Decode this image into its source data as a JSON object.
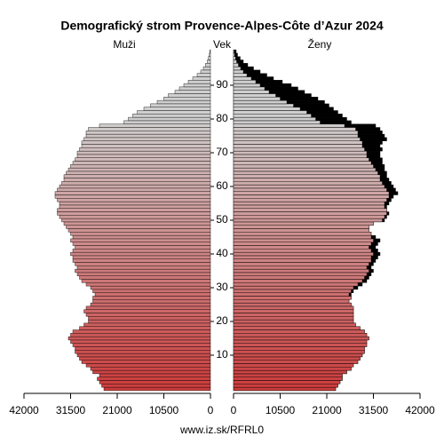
{
  "chart_data": {
    "type": "pyramid",
    "title": "Demografický strom Provence-Alpes-Côte d’Azur 2024",
    "y_label": "Vek",
    "footer": "www.iz.sk/RFRL0",
    "y": [
      0,
      1,
      2,
      3,
      4,
      5,
      6,
      7,
      8,
      9,
      10,
      11,
      12,
      13,
      14,
      15,
      16,
      17,
      18,
      19,
      20,
      21,
      22,
      23,
      24,
      25,
      26,
      27,
      28,
      29,
      30,
      31,
      32,
      33,
      34,
      35,
      36,
      37,
      38,
      39,
      40,
      41,
      42,
      43,
      44,
      45,
      46,
      47,
      48,
      49,
      50,
      51,
      52,
      53,
      54,
      55,
      56,
      57,
      58,
      59,
      60,
      61,
      62,
      63,
      64,
      65,
      66,
      67,
      68,
      69,
      70,
      71,
      72,
      73,
      74,
      75,
      76,
      77,
      78,
      79,
      80,
      81,
      82,
      83,
      84,
      85,
      86,
      87,
      88,
      89,
      90,
      91,
      92,
      93,
      94,
      95,
      96,
      97,
      98,
      99,
      100
    ],
    "ylim": [
      -0.5,
      100.5
    ],
    "yticks": [
      10,
      20,
      30,
      40,
      50,
      60,
      70,
      80,
      90
    ],
    "xlim": [
      0,
      42000
    ],
    "xticks": [
      0,
      10500,
      21000,
      31500,
      42000
    ],
    "color_young": "#cc3b3b",
    "color_old": "#cfcfcf",
    "excess_color": "#000000",
    "series": [
      {
        "name": "Muži",
        "values": [
          24000,
          24500,
          25000,
          25500,
          25000,
          26500,
          27000,
          28000,
          29000,
          29500,
          30000,
          30500,
          30500,
          31000,
          31500,
          32000,
          31500,
          31000,
          29500,
          28500,
          27500,
          27500,
          28000,
          28500,
          28000,
          27000,
          26500,
          26500,
          26000,
          26500,
          27000,
          28000,
          29000,
          29500,
          30000,
          30500,
          30000,
          30500,
          31000,
          31000,
          31500,
          31000,
          30500,
          31000,
          31500,
          31000,
          31500,
          32000,
          32500,
          33000,
          33500,
          34000,
          34500,
          34500,
          34000,
          34000,
          34500,
          35000,
          35000,
          34500,
          34000,
          33500,
          33000,
          33000,
          32500,
          32000,
          31500,
          31000,
          30500,
          30000,
          30000,
          29500,
          29000,
          29000,
          28500,
          28000,
          28000,
          27500,
          25000,
          19500,
          18500,
          17500,
          16500,
          15000,
          13500,
          12000,
          10500,
          9500,
          8000,
          7000,
          6000,
          5000,
          4000,
          3000,
          2200,
          1600,
          1100,
          700,
          450,
          250,
          150
        ]
      },
      {
        "name": "Ženy",
        "values": [
          23000,
          23500,
          24000,
          24500,
          24500,
          25500,
          26500,
          27000,
          28000,
          28500,
          29000,
          29500,
          29500,
          30000,
          30000,
          30500,
          30000,
          29500,
          28500,
          27500,
          27000,
          27000,
          27000,
          27000,
          27000,
          26500,
          26000,
          26500,
          26500,
          27000,
          28000,
          29000,
          30000,
          30500,
          31000,
          31500,
          31000,
          31500,
          32000,
          32500,
          33000,
          32500,
          32000,
          32500,
          33000,
          32000,
          31000,
          30500,
          30500,
          31500,
          34000,
          34500,
          35000,
          34500,
          34500,
          35000,
          35500,
          36000,
          37000,
          36500,
          36000,
          35500,
          35000,
          34500,
          34500,
          34000,
          34000,
          33500,
          33500,
          33000,
          33000,
          33500,
          33000,
          33500,
          34500,
          34000,
          33500,
          33000,
          32000,
          26500,
          25500,
          24500,
          23500,
          22500,
          21500,
          20500,
          19000,
          17500,
          16000,
          14500,
          13000,
          11000,
          9000,
          7500,
          6000,
          4500,
          3200,
          2200,
          1500,
          900,
          600
        ]
      }
    ]
  }
}
